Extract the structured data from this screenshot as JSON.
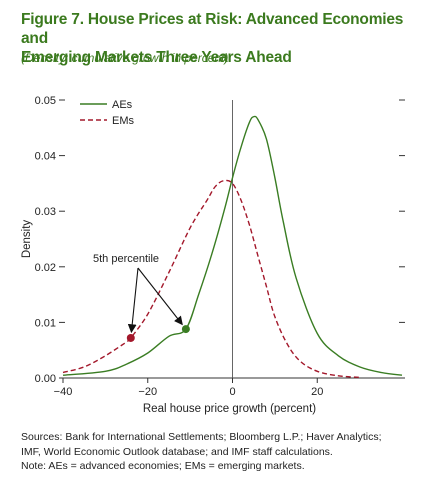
{
  "header": {
    "title_line1": "Figure 7. House Prices at Risk: Advanced Economies and",
    "title_line2": "Emerging Markets Three Years Ahead",
    "subtitle": "(Density; cumulative growth in percent)"
  },
  "colors": {
    "title": "#3b7a1e",
    "aes": "#3a7d23",
    "ems": "#a3182b",
    "axis": "#333333"
  },
  "chart_data": {
    "type": "line",
    "xlabel": "Real house price growth (percent)",
    "ylabel": "Density",
    "xlim": [
      -40,
      40
    ],
    "ylim": [
      0,
      0.05
    ],
    "x_ticks": [
      -40,
      -20,
      0,
      20
    ],
    "x_tick_labels": [
      "−40",
      "−20",
      "0",
      "20"
    ],
    "y_ticks": [
      0,
      0.01,
      0.02,
      0.03,
      0.04,
      0.05
    ],
    "y_tick_labels": [
      "0.00",
      "0.01",
      "0.02",
      "0.03",
      "0.04",
      "0.05"
    ],
    "vertical_reference_line_x": 0,
    "legend_position": "top-left",
    "series": [
      {
        "name": "AEs",
        "style": "solid",
        "points": [
          [
            -40,
            0.0005
          ],
          [
            -30,
            0.0012
          ],
          [
            -25,
            0.0025
          ],
          [
            -20,
            0.0045
          ],
          [
            -15,
            0.0075
          ],
          [
            -11,
            0.0088
          ],
          [
            -8,
            0.015
          ],
          [
            -5,
            0.022
          ],
          [
            -2,
            0.03
          ],
          [
            0,
            0.036
          ],
          [
            2,
            0.0415
          ],
          [
            4,
            0.046
          ],
          [
            5,
            0.047
          ],
          [
            6,
            0.0465
          ],
          [
            8,
            0.043
          ],
          [
            10,
            0.036
          ],
          [
            12,
            0.028
          ],
          [
            15,
            0.018
          ],
          [
            20,
            0.008
          ],
          [
            25,
            0.004
          ],
          [
            30,
            0.002
          ],
          [
            35,
            0.001
          ],
          [
            40,
            0.0005
          ]
        ]
      },
      {
        "name": "EMs",
        "style": "dashed",
        "points": [
          [
            -40,
            0.001
          ],
          [
            -35,
            0.002
          ],
          [
            -30,
            0.004
          ],
          [
            -25,
            0.0065
          ],
          [
            -24,
            0.0072
          ],
          [
            -20,
            0.0115
          ],
          [
            -15,
            0.019
          ],
          [
            -10,
            0.027
          ],
          [
            -6,
            0.032
          ],
          [
            -4,
            0.0345
          ],
          [
            -2,
            0.0355
          ],
          [
            0,
            0.035
          ],
          [
            2,
            0.032
          ],
          [
            4,
            0.0275
          ],
          [
            6,
            0.022
          ],
          [
            8,
            0.0165
          ],
          [
            10,
            0.011
          ],
          [
            13,
            0.006
          ],
          [
            16,
            0.003
          ],
          [
            20,
            0.0012
          ],
          [
            25,
            0.0004
          ],
          [
            30,
            0.0001
          ]
        ]
      }
    ],
    "annotation": {
      "label": "5th percentile",
      "markers": [
        {
          "series": "EMs",
          "x": -24,
          "y": 0.0072
        },
        {
          "series": "AEs",
          "x": -11,
          "y": 0.0088
        }
      ]
    }
  },
  "source": {
    "line1": "Sources: Bank for International Settlements; Bloomberg L.P.; Haver Analytics;",
    "line2": "IMF, World Economic Outlook database; and IMF staff calculations.",
    "line3": "Note: AEs = advanced economies; EMs = emerging markets."
  }
}
